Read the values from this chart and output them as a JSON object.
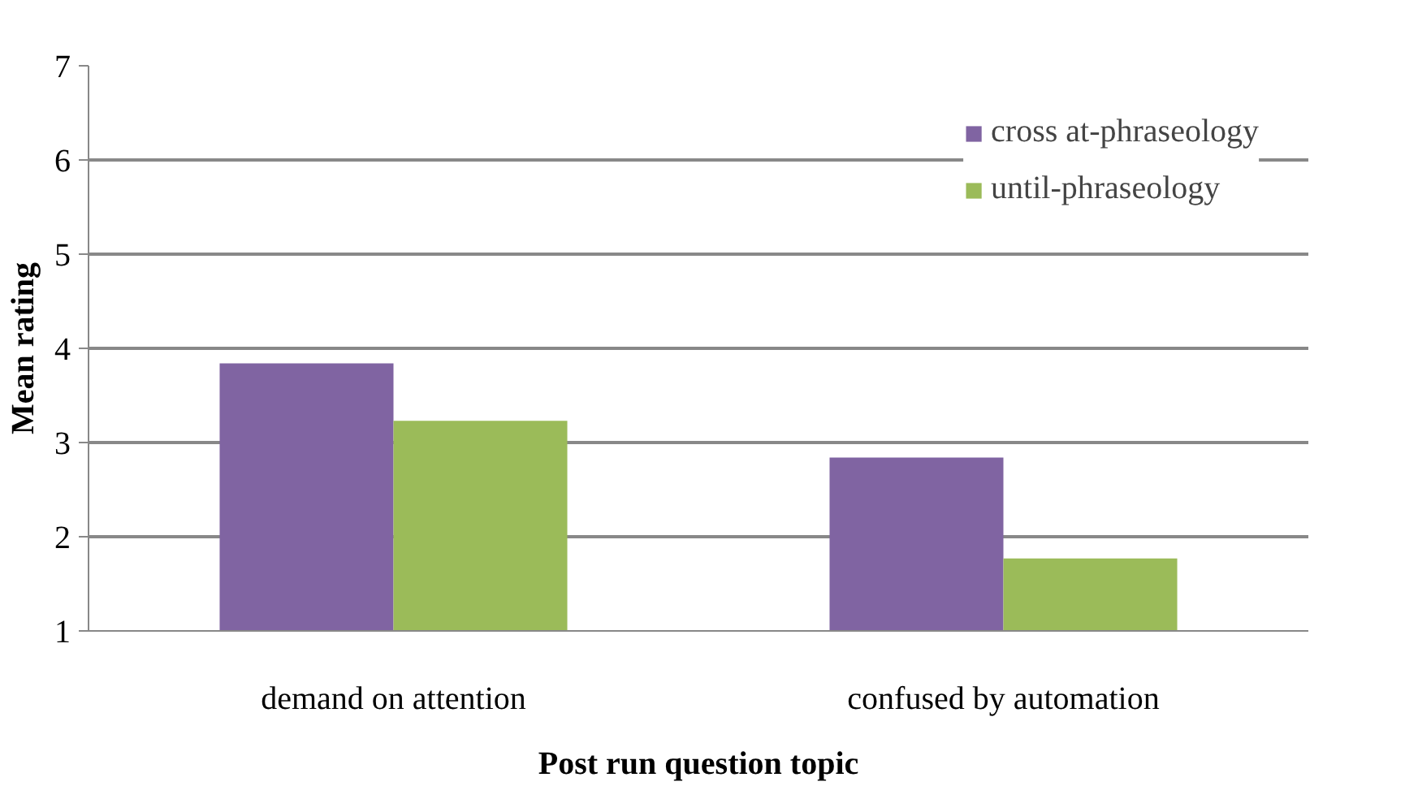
{
  "chart_data": {
    "type": "bar",
    "xlabel": "Post run question topic",
    "ylabel": "Mean rating",
    "categories": [
      "demand on attention",
      "confused by automation"
    ],
    "series": [
      {
        "name": "cross at-phraseology",
        "color": "#8064a2",
        "values": [
          3.84,
          2.84
        ]
      },
      {
        "name": "until-phraseology",
        "color": "#9bbb59",
        "values": [
          3.23,
          1.77
        ]
      }
    ],
    "ylim": [
      1,
      7
    ],
    "yticks": [
      1,
      2,
      3,
      4,
      5,
      6,
      7
    ],
    "grid": "y",
    "legend": "top right"
  }
}
